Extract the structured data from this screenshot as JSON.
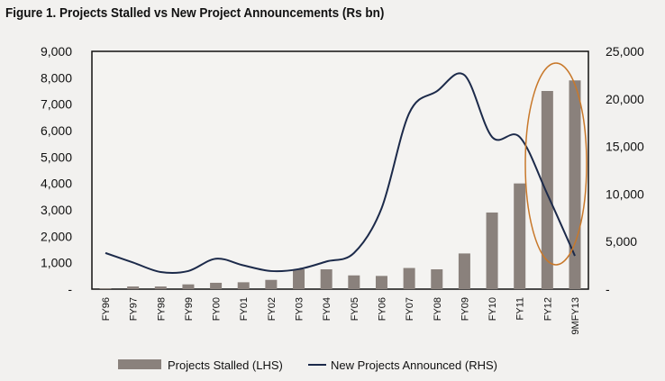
{
  "chart_data": {
    "type": "bar",
    "title": "Figure 1. Projects Stalled vs New Project Announcements (Rs bn)",
    "categories": [
      "FY96",
      "FY97",
      "FY98",
      "FY99",
      "FY00",
      "FY01",
      "FY02",
      "FY03",
      "FY04",
      "FY05",
      "FY06",
      "FY07",
      "FY08",
      "FY09",
      "FY10",
      "FY11",
      "FY12",
      "9MFY13"
    ],
    "series": [
      {
        "name": "Projects Stalled (LHS)",
        "type": "bar",
        "axis": "left",
        "color": "#8a817c",
        "values": [
          30,
          100,
          100,
          180,
          240,
          260,
          350,
          750,
          750,
          520,
          500,
          800,
          750,
          1350,
          2900,
          4000,
          7500,
          7900
        ]
      },
      {
        "name": "New Projects Announced (RHS)",
        "type": "line",
        "axis": "right",
        "color": "#1c2a4a",
        "values": [
          3800,
          2800,
          1800,
          1900,
          3200,
          2500,
          1900,
          2100,
          2900,
          3800,
          8500,
          18500,
          20800,
          22500,
          16000,
          16000,
          10000,
          3500
        ]
      }
    ],
    "left_axis": {
      "ylim": [
        0,
        9000
      ],
      "ticks": [
        "-",
        "1,000",
        "2,000",
        "3,000",
        "4,000",
        "5,000",
        "6,000",
        "7,000",
        "8,000",
        "9,000"
      ]
    },
    "right_axis": {
      "ylim": [
        0,
        25000
      ],
      "ticks": [
        "-",
        "5,000",
        "10,000",
        "15,000",
        "20,000",
        "25,000"
      ]
    },
    "annotation": {
      "shape": "ellipse",
      "color": "#c8782a",
      "around": [
        "FY12",
        "9MFY13"
      ]
    },
    "legend": "bottom",
    "grid": false
  }
}
